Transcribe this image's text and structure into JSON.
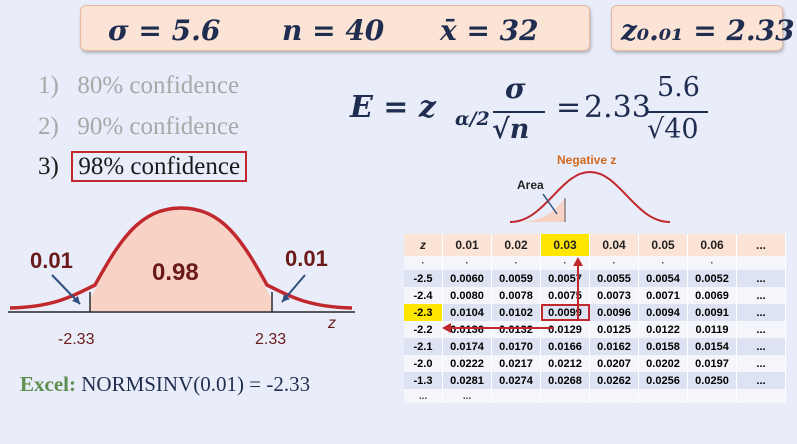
{
  "params": {
    "sigma": "σ = 5.6",
    "n": "n = 40",
    "xbar": "x̄ = 32",
    "z001": "z₀.₀₁ = 2.33"
  },
  "options": [
    {
      "num": "1)",
      "text": "80% confidence"
    },
    {
      "num": "2)",
      "text": "90% confidence"
    },
    {
      "num": "3)",
      "text": "98% confidence"
    }
  ],
  "formula": {
    "lhs": "E = z",
    "sub": "α/2",
    "num_sym": "σ",
    "den_sym": "√n",
    "eq": "=",
    "coef": "2.33",
    "num_val": "5.6",
    "den_val": "√40"
  },
  "small_curve": {
    "title": "Negative z",
    "area_label": "Area"
  },
  "curve": {
    "left_tail": "0.01",
    "center": "0.98",
    "right_tail": "0.01",
    "left_z": "-2.33",
    "right_z": "2.33",
    "axis": "z"
  },
  "excel": {
    "label": "Excel:",
    "expr": "NORMSINV(0.01) = -2.33"
  },
  "ztable": {
    "headers": [
      "z",
      "0.01",
      "0.02",
      "0.03",
      "0.04",
      "0.05",
      "0.06",
      "..."
    ],
    "rows": [
      [
        "·",
        "·",
        "·",
        "·",
        "·",
        "·",
        "·",
        ""
      ],
      [
        "-2.5",
        "0.0060",
        "0.0059",
        "0.0057",
        "0.0055",
        "0.0054",
        "0.0052",
        "..."
      ],
      [
        "-2.4",
        "0.0080",
        "0.0078",
        "0.0075",
        "0.0073",
        "0.0071",
        "0.0069",
        "..."
      ],
      [
        "-2.3",
        "0.0104",
        "0.0102",
        "0.0099",
        "0.0096",
        "0.0094",
        "0.0091",
        "..."
      ],
      [
        "-2.2",
        "0.0136",
        "0.0132",
        "0.0129",
        "0.0125",
        "0.0122",
        "0.0119",
        "..."
      ],
      [
        "-2.1",
        "0.0174",
        "0.0170",
        "0.0166",
        "0.0162",
        "0.0158",
        "0.0154",
        "..."
      ],
      [
        "-2.0",
        "0.0222",
        "0.0217",
        "0.0212",
        "0.0207",
        "0.0202",
        "0.0197",
        "..."
      ],
      [
        "-1.3",
        "0.0281",
        "0.0274",
        "0.0268",
        "0.0262",
        "0.0256",
        "0.0250",
        "..."
      ],
      [
        "...",
        "...",
        "",
        "",
        "",
        "",
        "",
        ""
      ]
    ]
  },
  "colors": {
    "accent_red": "#c0282d",
    "navy": "#1f2e50",
    "box_fill": "#fbe3d5",
    "highlight": "#ffe600",
    "excel_green": "#5f8f4f"
  }
}
